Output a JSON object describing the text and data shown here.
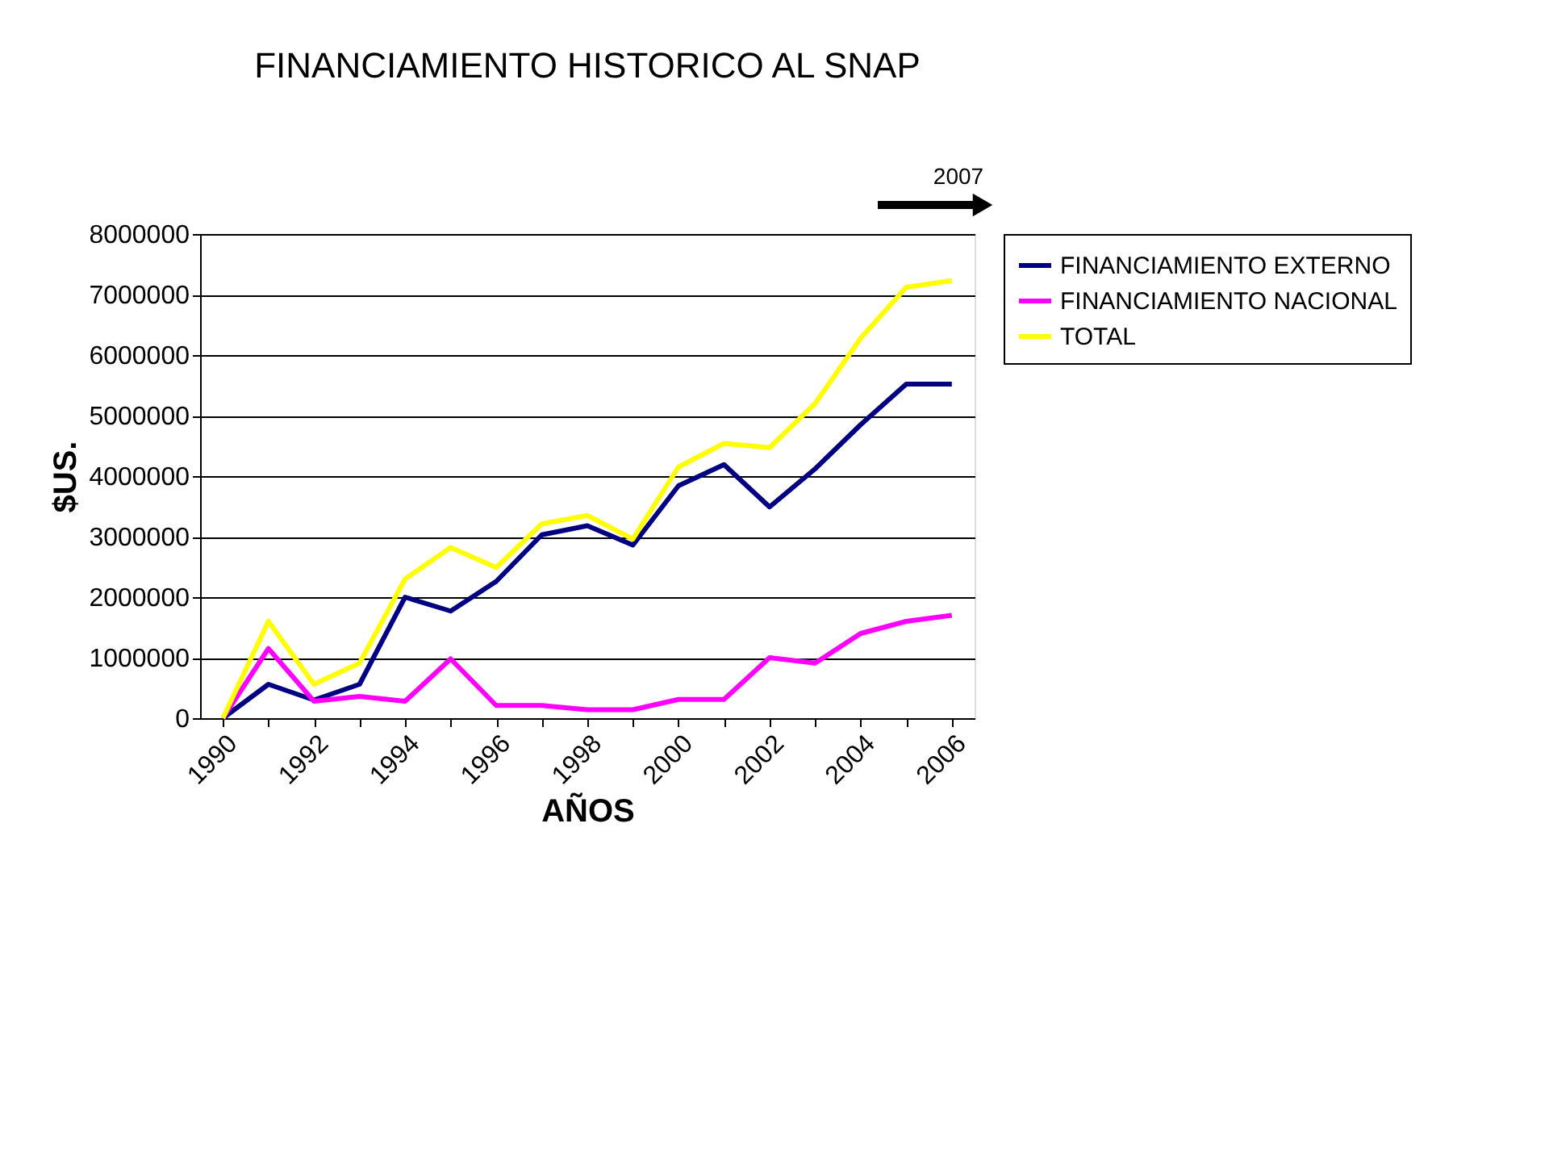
{
  "chart_data": {
    "type": "line",
    "title": "FINANCIAMIENTO HISTORICO AL SNAP",
    "xlabel": "AÑOS",
    "ylabel": "$US.",
    "categories": [
      "1990",
      null,
      "1992",
      null,
      "1994",
      null,
      "1996",
      null,
      "1998",
      null,
      "2000",
      null,
      "2002",
      null,
      "2004",
      null,
      "2006"
    ],
    "series": [
      {
        "name": "FINANCIAMIENTO EXTERNO",
        "color": "#000080",
        "values": [
          0,
          560000,
          300000,
          560000,
          2000000,
          1770000,
          2260000,
          3030000,
          3180000,
          2860000,
          3840000,
          4190000,
          3490000,
          4120000,
          4850000,
          5520000,
          5520000
        ]
      },
      {
        "name": "FINANCIAMIENTO NACIONAL",
        "color": "#ff00ff",
        "values": [
          0,
          1150000,
          280000,
          360000,
          280000,
          980000,
          210000,
          210000,
          140000,
          140000,
          310000,
          310000,
          1000000,
          910000,
          1400000,
          1600000,
          1700000
        ]
      },
      {
        "name": "TOTAL",
        "color": "#ffff00",
        "values": [
          0,
          1600000,
          560000,
          910000,
          2300000,
          2820000,
          2490000,
          3210000,
          3350000,
          2960000,
          4150000,
          4540000,
          4470000,
          5200000,
          6280000,
          7120000,
          7230000
        ]
      }
    ],
    "ylim": [
      0,
      8000000
    ],
    "yticks": [
      0,
      1000000,
      2000000,
      3000000,
      4000000,
      5000000,
      6000000,
      7000000,
      8000000
    ],
    "grid": "y",
    "legend": "right",
    "marker": "none",
    "line_style": "solid",
    "annotations": [
      "2007"
    ]
  }
}
